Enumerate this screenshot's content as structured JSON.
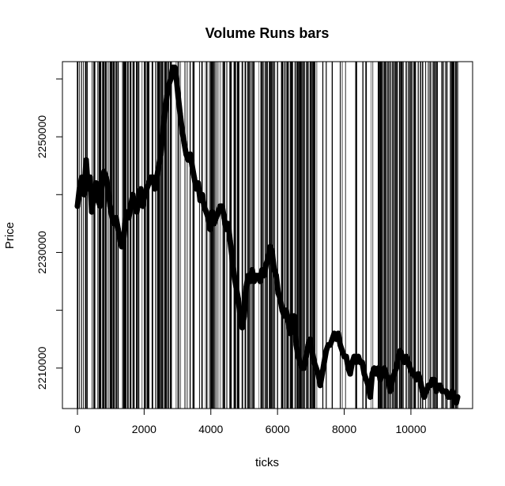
{
  "chart_data": {
    "type": "scatter",
    "title": "Volume Runs bars",
    "xlabel": "ticks",
    "ylabel": "Price",
    "xlim": [
      -450,
      11850
    ],
    "ylim": [
      2203000,
      2263000
    ],
    "x_ticks": [
      0,
      2000,
      4000,
      6000,
      8000,
      10000
    ],
    "y_ticks": [
      2210000,
      2230000,
      2250000
    ],
    "x_tick_labels": [
      "0",
      "2000",
      "4000",
      "6000",
      "8000",
      "10000"
    ],
    "y_tick_labels": [
      "2210000",
      "2230000",
      "2250000"
    ],
    "grid": false,
    "legend": "none",
    "series": [
      {
        "marker_color": "#000000",
        "x": [
          0,
          60,
          130,
          200,
          260,
          320,
          380,
          430,
          500,
          560,
          620,
          680,
          740,
          800,
          860,
          920,
          980,
          1040,
          1100,
          1160,
          1220,
          1280,
          1330,
          1380,
          1430,
          1480,
          1540,
          1600,
          1660,
          1720,
          1780,
          1840,
          1900,
          1960,
          2020,
          2080,
          2140,
          2200,
          2260,
          2320,
          2380,
          2440,
          2500,
          2560,
          2620,
          2680,
          2740,
          2800,
          2860,
          2920,
          2970,
          3020,
          3080,
          3140,
          3200,
          3260,
          3320,
          3380,
          3440,
          3500,
          3560,
          3620,
          3680,
          3740,
          3800,
          3860,
          3920,
          3980,
          4040,
          4100,
          4160,
          4220,
          4280,
          4340,
          4400,
          4460,
          4520,
          4580,
          4640,
          4700,
          4760,
          4820,
          4880,
          4940,
          5000,
          5060,
          5120,
          5180,
          5240,
          5300,
          5360,
          5420,
          5480,
          5540,
          5600,
          5660,
          5720,
          5780,
          5840,
          5900,
          5960,
          6020,
          6080,
          6140,
          6200,
          6260,
          6320,
          6380,
          6440,
          6500,
          6560,
          6620,
          6680,
          6740,
          6800,
          6860,
          6920,
          6980,
          7040,
          7100,
          7160,
          7220,
          7280,
          7340,
          7400,
          7460,
          7520,
          7580,
          7640,
          7700,
          7760,
          7820,
          7880,
          7940,
          8000,
          8060,
          8120,
          8180,
          8240,
          8300,
          8360,
          8420,
          8480,
          8540,
          8600,
          8660,
          8720,
          8780,
          8840,
          8900,
          8960,
          9020,
          9080,
          9140,
          9200,
          9260,
          9320,
          9380,
          9440,
          9500,
          9560,
          9620,
          9680,
          9740,
          9800,
          9860,
          9920,
          9980,
          10040,
          10100,
          10160,
          10220,
          10280,
          10340,
          10400,
          10460,
          10520,
          10580,
          10640,
          10700,
          10760,
          10820,
          10880,
          10940,
          11000,
          11060,
          11120,
          11180,
          11240,
          11300,
          11360,
          11400
        ],
        "y": [
          2238000,
          2241000,
          2243000,
          2240000,
          2246000,
          2241000,
          2243000,
          2237000,
          2240000,
          2242000,
          2239000,
          2238000,
          2242000,
          2244000,
          2243000,
          2241000,
          2238000,
          2236000,
          2235000,
          2236000,
          2234000,
          2232000,
          2231000,
          2232000,
          2235000,
          2237000,
          2236000,
          2238000,
          2240000,
          2238000,
          2237000,
          2239000,
          2241000,
          2238000,
          2240000,
          2241000,
          2242000,
          2243000,
          2243000,
          2241000,
          2243000,
          2245000,
          2247000,
          2251000,
          2254000,
          2257000,
          2259000,
          2260000,
          2262000,
          2262000,
          2260000,
          2257000,
          2254000,
          2251000,
          2249000,
          2247000,
          2246000,
          2247000,
          2245000,
          2243000,
          2241000,
          2242000,
          2239000,
          2240000,
          2238000,
          2237000,
          2236000,
          2234000,
          2237000,
          2235000,
          2236000,
          2237000,
          2238000,
          2238000,
          2236000,
          2234000,
          2235000,
          2232000,
          2229000,
          2226000,
          2224000,
          2222000,
          2219000,
          2217000,
          2219000,
          2224000,
          2226000,
          2225000,
          2227000,
          2225000,
          2226000,
          2226000,
          2225000,
          2227000,
          2226000,
          2228000,
          2229000,
          2231000,
          2230000,
          2227000,
          2226000,
          2223000,
          2222000,
          2220000,
          2219000,
          2220000,
          2218000,
          2216000,
          2219000,
          2219000,
          2214000,
          2212000,
          2211000,
          2210000,
          2210000,
          2212000,
          2214000,
          2215000,
          2213000,
          2211000,
          2210000,
          2209000,
          2207000,
          2209000,
          2211000,
          2213000,
          2214000,
          2214000,
          2215000,
          2216000,
          2215000,
          2216000,
          2214000,
          2213000,
          2212000,
          2212000,
          2210000,
          2209000,
          2211000,
          2212000,
          2211000,
          2212000,
          2211000,
          2211000,
          2209000,
          2208000,
          2207000,
          2205000,
          2209000,
          2210000,
          2209000,
          2210000,
          2208000,
          2209000,
          2210000,
          2209000,
          2208000,
          2206000,
          2208000,
          2209000,
          2210000,
          2212000,
          2213000,
          2212000,
          2211000,
          2212000,
          2211000,
          2210000,
          2209000,
          2209000,
          2208000,
          2209000,
          2208000,
          2206000,
          2205000,
          2206000,
          2207000,
          2207000,
          2208000,
          2208000,
          2206000,
          2207000,
          2207000,
          2206000,
          2206000,
          2206000,
          2205000,
          2205000,
          2206000,
          2205000,
          2204000,
          2205000
        ]
      }
    ]
  }
}
